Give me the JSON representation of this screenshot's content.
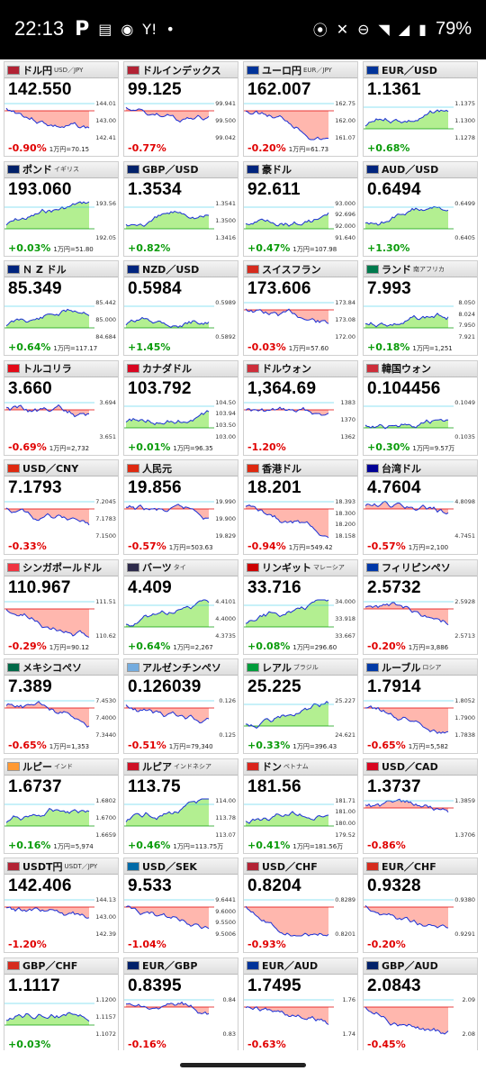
{
  "status_bar": {
    "time": "22:13",
    "battery": "79%",
    "icons": [
      "p-app-icon",
      "news-icon",
      "line-icon",
      "yahoo-icon",
      "dot-icon",
      "location-icon",
      "mute-icon",
      "dnd-icon",
      "wifi-icon",
      "signal-icon",
      "battery-icon"
    ]
  },
  "colors": {
    "up": "#0a9b0a",
    "down": "#e00000",
    "up_fill": "#a6ec7e",
    "down_fill": "#ffaaa0",
    "line": "#1a2fd6"
  },
  "cards": [
    {
      "name": "ドル円",
      "sub": "USD／JPY",
      "price": "142.550",
      "chg": "-0.90",
      "dir": "down",
      "extra": "1万円=70.15",
      "flag": "#b22234",
      "levels": [
        "144.01",
        "143.00",
        "142.41"
      ]
    },
    {
      "name": "ドルインデックス",
      "sub": "",
      "price": "99.125",
      "chg": "-0.77",
      "dir": "down",
      "extra": "",
      "flag": "#b22234",
      "levels": [
        "99.941",
        "99.500",
        "99.042"
      ]
    },
    {
      "name": "ユーロ円",
      "sub": "EUR／JPY",
      "price": "162.007",
      "chg": "-0.20",
      "dir": "down",
      "extra": "1万円=61.73",
      "flag": "#003399",
      "levels": [
        "162.75",
        "162.00",
        "161.07"
      ]
    },
    {
      "name": "EUR／USD",
      "sub": "",
      "price": "1.1361",
      "chg": "+0.68",
      "dir": "up",
      "extra": "",
      "flag": "#003399",
      "levels": [
        "1.1375",
        "1.1300",
        "1.1278"
      ]
    },
    {
      "name": "ポンド",
      "sub": "イギリス",
      "price": "193.060",
      "chg": "+0.03",
      "dir": "up",
      "extra": "1万円=51.80",
      "flag": "#012169",
      "levels": [
        "193.56",
        "192.05"
      ]
    },
    {
      "name": "GBP／USD",
      "sub": "",
      "price": "1.3534",
      "chg": "+0.82",
      "dir": "up",
      "extra": "",
      "flag": "#012169",
      "levels": [
        "1.3541",
        "1.3500",
        "1.3416"
      ]
    },
    {
      "name": "豪ドル",
      "sub": "",
      "price": "92.611",
      "chg": "+0.47",
      "dir": "up",
      "extra": "1万円=107.98",
      "flag": "#00247d",
      "levels": [
        "93.000",
        "92.696",
        "92.000",
        "91.640"
      ]
    },
    {
      "name": "AUD／USD",
      "sub": "",
      "price": "0.6494",
      "chg": "+1.30",
      "dir": "up",
      "extra": "",
      "flag": "#00247d",
      "levels": [
        "0.6499",
        "0.6405"
      ]
    },
    {
      "name": "Ｎ Z ドル",
      "sub": "",
      "price": "85.349",
      "chg": "+0.64",
      "dir": "up",
      "extra": "1万円=117.17",
      "flag": "#00247d",
      "levels": [
        "85.442",
        "85.000",
        "84.684"
      ]
    },
    {
      "name": "NZD／USD",
      "sub": "",
      "price": "0.5984",
      "chg": "+1.45",
      "dir": "up",
      "extra": "",
      "flag": "#00247d",
      "levels": [
        "0.5989",
        "0.5892"
      ]
    },
    {
      "name": "スイスフラン",
      "sub": "",
      "price": "173.606",
      "chg": "-0.03",
      "dir": "down",
      "extra": "1万円=57.60",
      "flag": "#d52b1e",
      "levels": [
        "173.84",
        "173.08",
        "172.00"
      ]
    },
    {
      "name": "ランド",
      "sub": "南アフリカ",
      "price": "7.993",
      "chg": "+0.18",
      "dir": "up",
      "extra": "1万円=1,251",
      "flag": "#007a4d",
      "levels": [
        "8.050",
        "8.024",
        "7.950",
        "7.921"
      ]
    },
    {
      "name": "トルコリラ",
      "sub": "",
      "price": "3.660",
      "chg": "-0.69",
      "dir": "down",
      "extra": "1万円=2,732",
      "flag": "#e30a17",
      "levels": [
        "3.694",
        "3.651"
      ]
    },
    {
      "name": "カナダドル",
      "sub": "",
      "price": "103.792",
      "chg": "+0.01",
      "dir": "up",
      "extra": "1万円=96.35",
      "flag": "#d80621",
      "levels": [
        "104.50",
        "103.94",
        "103.50",
        "103.00"
      ]
    },
    {
      "name": "ドルウォン",
      "sub": "",
      "price": "1,364.69",
      "chg": "-1.20",
      "dir": "down",
      "extra": "",
      "flag": "#cd2e3a",
      "levels": [
        "1383",
        "1370",
        "1362"
      ]
    },
    {
      "name": "韓国ウォン",
      "sub": "",
      "price": "0.104456",
      "chg": "+0.30",
      "dir": "up",
      "extra": "1万円=9.57万",
      "flag": "#cd2e3a",
      "levels": [
        "0.1049",
        "0.1035"
      ]
    },
    {
      "name": "USD／CNY",
      "sub": "",
      "price": "7.1793",
      "chg": "-0.33",
      "dir": "down",
      "extra": "",
      "flag": "#de2910",
      "levels": [
        "7.2045",
        "7.1783",
        "7.1500"
      ]
    },
    {
      "name": "人民元",
      "sub": "",
      "price": "19.856",
      "chg": "-0.57",
      "dir": "down",
      "extra": "1万円=503.63",
      "flag": "#de2910",
      "levels": [
        "19.990",
        "19.900",
        "19.829"
      ]
    },
    {
      "name": "香港ドル",
      "sub": "",
      "price": "18.201",
      "chg": "-0.94",
      "dir": "down",
      "extra": "1万円=549.42",
      "flag": "#de2910",
      "levels": [
        "18.393",
        "18.300",
        "18.200",
        "18.158"
      ]
    },
    {
      "name": "台湾ドル",
      "sub": "",
      "price": "4.7604",
      "chg": "-0.57",
      "dir": "down",
      "extra": "1万円=2,100",
      "flag": "#000095",
      "levels": [
        "4.8098",
        "4.7451"
      ]
    },
    {
      "name": "シンガポールドル",
      "sub": "",
      "price": "110.967",
      "chg": "-0.29",
      "dir": "down",
      "extra": "1万円=90.12",
      "flag": "#ef3340",
      "levels": [
        "111.51",
        "110.62"
      ]
    },
    {
      "name": "バーツ",
      "sub": "タイ",
      "price": "4.409",
      "chg": "+0.64",
      "dir": "up",
      "extra": "1万円=2,267",
      "flag": "#2d2a4a",
      "levels": [
        "4.4101",
        "4.4000",
        "4.3735"
      ]
    },
    {
      "name": "リンギット",
      "sub": "マレーシア",
      "price": "33.716",
      "chg": "+0.08",
      "dir": "up",
      "extra": "1万円=296.60",
      "flag": "#cc0001",
      "levels": [
        "34.000",
        "33.918",
        "33.667"
      ]
    },
    {
      "name": "フィリピンペソ",
      "sub": "",
      "price": "2.5732",
      "chg": "-0.20",
      "dir": "down",
      "extra": "1万円=3,886",
      "flag": "#0038a8",
      "levels": [
        "2.5928",
        "2.5713"
      ]
    },
    {
      "name": "メキシコペソ",
      "sub": "",
      "price": "7.389",
      "chg": "-0.65",
      "dir": "down",
      "extra": "1万円=1,353",
      "flag": "#006847",
      "levels": [
        "7.4530",
        "7.4000",
        "7.3440"
      ]
    },
    {
      "name": "アルゼンチンペソ",
      "sub": "",
      "price": "0.126039",
      "chg": "-0.51",
      "dir": "down",
      "extra": "1万円=79,340",
      "flag": "#74acdf",
      "levels": [
        "0.126",
        "0.125"
      ]
    },
    {
      "name": "レアル",
      "sub": "ブラジル",
      "price": "25.225",
      "chg": "+0.33",
      "dir": "up",
      "extra": "1万円=396.43",
      "flag": "#009c3b",
      "levels": [
        "25.227",
        "24.621"
      ]
    },
    {
      "name": "ルーブル",
      "sub": "ロシア",
      "price": "1.7914",
      "chg": "-0.65",
      "dir": "down",
      "extra": "1万円=5,582",
      "flag": "#0039a6",
      "levels": [
        "1.8052",
        "1.7900",
        "1.7838"
      ]
    },
    {
      "name": "ルピー",
      "sub": "インド",
      "price": "1.6737",
      "chg": "+0.16",
      "dir": "up",
      "extra": "1万円=5,974",
      "flag": "#ff9933",
      "levels": [
        "1.6802",
        "1.6700",
        "1.6659"
      ]
    },
    {
      "name": "ルピア",
      "sub": "インドネシア",
      "price": "113.75",
      "chg": "+0.46",
      "dir": "up",
      "extra": "1万円=113.75万",
      "flag": "#ce1126",
      "levels": [
        "114.00",
        "113.78",
        "113.07"
      ]
    },
    {
      "name": "ドン",
      "sub": "ベトナム",
      "price": "181.56",
      "chg": "+0.41",
      "dir": "up",
      "extra": "1万円=181.56万",
      "flag": "#da251d",
      "levels": [
        "181.71",
        "181.00",
        "180.00",
        "179.52"
      ]
    },
    {
      "name": "USD／CAD",
      "sub": "",
      "price": "1.3737",
      "chg": "-0.86",
      "dir": "down",
      "extra": "",
      "flag": "#d80621",
      "levels": [
        "1.3859",
        "1.3706"
      ]
    },
    {
      "name": "USDT円",
      "sub": "USDT／JPY",
      "price": "142.406",
      "chg": "-1.20",
      "dir": "down",
      "extra": "",
      "flag": "#b22234",
      "levels": [
        "144.13",
        "143.00",
        "142.39"
      ]
    },
    {
      "name": "USD／SEK",
      "sub": "",
      "price": "9.533",
      "chg": "-1.04",
      "dir": "down",
      "extra": "",
      "flag": "#006aa7",
      "levels": [
        "9.6441",
        "9.6000",
        "9.5500",
        "9.5006"
      ]
    },
    {
      "name": "USD／CHF",
      "sub": "",
      "price": "0.8204",
      "chg": "-0.93",
      "dir": "down",
      "extra": "",
      "flag": "#b22234",
      "levels": [
        "0.8289",
        "0.8201"
      ]
    },
    {
      "name": "EUR／CHF",
      "sub": "",
      "price": "0.9328",
      "chg": "-0.20",
      "dir": "down",
      "extra": "",
      "flag": "#d52b1e",
      "levels": [
        "0.9380",
        "0.9291"
      ]
    },
    {
      "name": "GBP／CHF",
      "sub": "",
      "price": "1.1117",
      "chg": "+0.03",
      "dir": "up",
      "extra": "",
      "flag": "#d52b1e",
      "levels": [
        "1.1200",
        "1.1157",
        "1.1072"
      ]
    },
    {
      "name": "EUR／GBP",
      "sub": "",
      "price": "0.8395",
      "chg": "-0.16",
      "dir": "down",
      "extra": "",
      "flag": "#012169",
      "levels": [
        "0.84",
        "0.83"
      ]
    },
    {
      "name": "EUR／AUD",
      "sub": "",
      "price": "1.7495",
      "chg": "-0.63",
      "dir": "down",
      "extra": "",
      "flag": "#003399",
      "levels": [
        "1.76",
        "1.74"
      ]
    },
    {
      "name": "GBP／AUD",
      "sub": "",
      "price": "2.0843",
      "chg": "-0.45",
      "dir": "down",
      "extra": "",
      "flag": "#012169",
      "levels": [
        "2.09",
        "2.08"
      ]
    }
  ]
}
